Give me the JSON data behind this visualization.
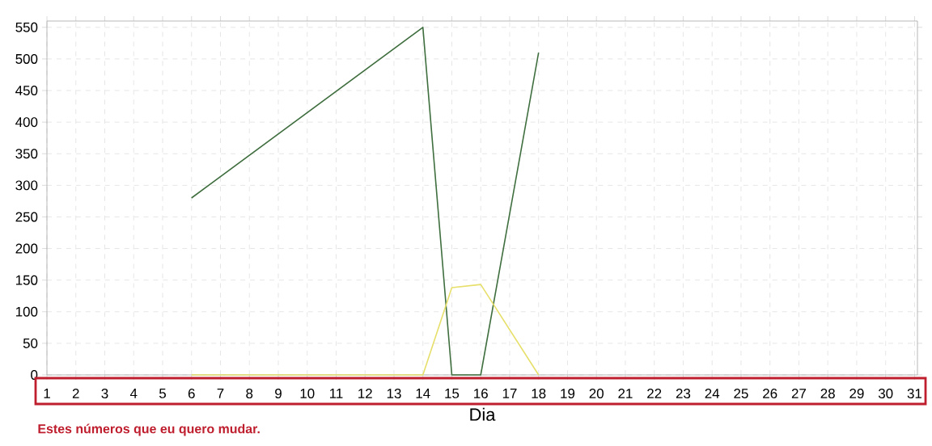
{
  "chart_data": {
    "type": "line",
    "xlabel": "Dia",
    "categories": [
      "1",
      "2",
      "3",
      "4",
      "5",
      "6",
      "7",
      "8",
      "9",
      "10",
      "11",
      "12",
      "13",
      "14",
      "15",
      "16",
      "17",
      "18",
      "19",
      "20",
      "21",
      "22",
      "23",
      "24",
      "25",
      "26",
      "27",
      "28",
      "29",
      "30",
      "31"
    ],
    "series": [
      {
        "color": "#3f6e3f",
        "values": [
          null,
          null,
          null,
          null,
          null,
          280,
          null,
          null,
          null,
          null,
          null,
          null,
          null,
          550,
          0,
          0,
          null,
          510,
          null,
          null,
          null,
          null,
          null,
          null,
          null,
          null,
          null,
          null,
          null,
          null,
          null
        ]
      },
      {
        "color": "#e6df6a",
        "values": [
          null,
          null,
          null,
          null,
          null,
          0,
          null,
          null,
          null,
          null,
          null,
          null,
          null,
          0,
          138,
          143,
          null,
          0,
          null,
          null,
          null,
          null,
          null,
          null,
          null,
          null,
          null,
          null,
          null,
          null,
          null
        ]
      }
    ],
    "ylim": [
      0,
      560
    ],
    "yticks": [
      0,
      50,
      100,
      150,
      200,
      250,
      300,
      350,
      400,
      450,
      500,
      550
    ],
    "grid": true,
    "annotations": [
      "Estes números que eu quero mudar."
    ]
  }
}
